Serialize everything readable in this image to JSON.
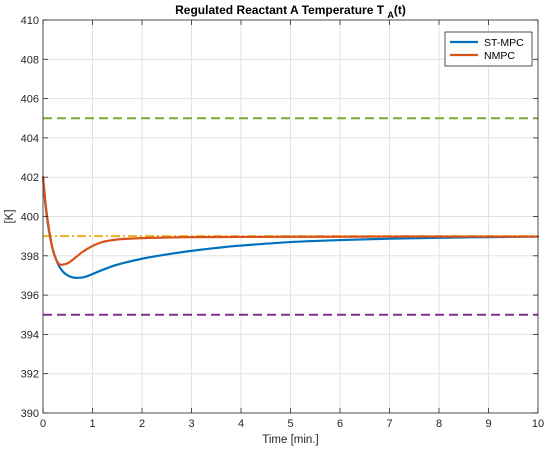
{
  "chart_data": {
    "type": "line",
    "title": "Regulated Reactant A Temperature T",
    "title_subscript": "A",
    "title_suffix": "(t)",
    "xlabel": "Time [min.]",
    "ylabel": "[K]",
    "xlim": [
      0,
      10
    ],
    "ylim": [
      390,
      410
    ],
    "xticks": [
      0,
      1,
      2,
      3,
      4,
      5,
      6,
      7,
      8,
      9,
      10
    ],
    "yticks": [
      390,
      392,
      394,
      396,
      398,
      400,
      402,
      404,
      406,
      408,
      410
    ],
    "grid": true,
    "legend_position": "top-right",
    "series": [
      {
        "name": "ST-MPC",
        "color": "#0072BD",
        "style": "solid",
        "x": [
          0,
          0.05,
          0.1,
          0.15,
          0.2,
          0.3,
          0.4,
          0.5,
          0.6,
          0.7,
          0.8,
          0.9,
          1.0,
          1.2,
          1.5,
          2.0,
          2.5,
          3.0,
          3.5,
          4.0,
          5.0,
          6.0,
          7.0,
          8.0,
          9.0,
          10.0
        ],
        "y": [
          402.0,
          400.6,
          399.6,
          398.9,
          398.3,
          397.6,
          397.2,
          397.0,
          396.9,
          396.88,
          396.9,
          396.97,
          397.07,
          397.28,
          397.55,
          397.85,
          398.07,
          398.25,
          398.4,
          398.52,
          398.7,
          398.8,
          398.87,
          398.92,
          398.95,
          398.98
        ]
      },
      {
        "name": "NMPC",
        "color": "#D95319",
        "style": "solid",
        "x": [
          0,
          0.05,
          0.1,
          0.15,
          0.2,
          0.25,
          0.3,
          0.35,
          0.4,
          0.5,
          0.6,
          0.7,
          0.8,
          1.0,
          1.2,
          1.5,
          2.0,
          2.5,
          3.0,
          4.0,
          5.0,
          6.0,
          7.0,
          8.0,
          10.0
        ],
        "y": [
          402.0,
          400.7,
          399.7,
          398.9,
          398.3,
          397.9,
          397.65,
          397.55,
          397.55,
          397.62,
          397.8,
          398.0,
          398.2,
          398.5,
          398.7,
          398.83,
          398.9,
          398.93,
          398.95,
          398.96,
          398.97,
          398.97,
          398.98,
          398.98,
          398.98
        ]
      }
    ],
    "reference_lines": [
      {
        "y": 405,
        "color": "#77AC30",
        "style": "dashed"
      },
      {
        "y": 395,
        "color": "#7E2F8E",
        "style": "dashed"
      },
      {
        "y": 399,
        "color": "#EDB120",
        "style": "dashdot"
      }
    ]
  }
}
